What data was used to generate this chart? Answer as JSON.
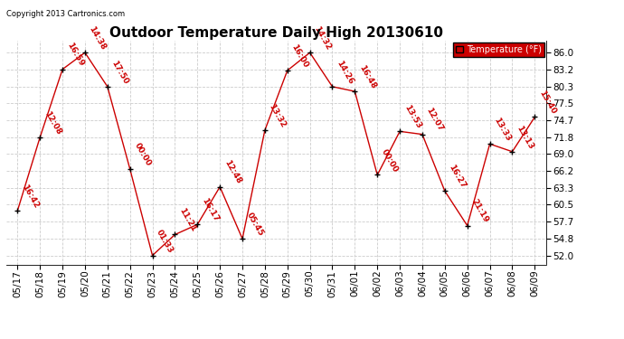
{
  "title": "Outdoor Temperature Daily High 20130610",
  "copyright_text": "Copyright 2013 Cartronics.com",
  "legend_label": "Temperature (°F)",
  "x_labels": [
    "05/17",
    "05/18",
    "05/19",
    "05/20",
    "05/21",
    "05/22",
    "05/23",
    "05/24",
    "05/25",
    "05/26",
    "05/27",
    "05/28",
    "05/29",
    "05/30",
    "05/31",
    "06/01",
    "06/02",
    "06/03",
    "06/04",
    "06/05",
    "06/06",
    "06/07",
    "06/08",
    "06/09"
  ],
  "y_values": [
    59.5,
    71.8,
    83.2,
    86.0,
    80.3,
    66.5,
    52.0,
    55.5,
    57.2,
    63.5,
    54.8,
    73.0,
    83.0,
    86.0,
    80.3,
    79.5,
    65.5,
    72.8,
    72.3,
    62.8,
    57.0,
    70.7,
    69.4,
    75.2
  ],
  "time_labels": [
    "16:42",
    "12:08",
    "16:59",
    "14:38",
    "17:50",
    "00:00",
    "01:33",
    "11:21",
    "16:17",
    "12:48",
    "05:45",
    "13:32",
    "16:00",
    "14:32",
    "14:26",
    "16:48",
    "00:00",
    "13:53",
    "12:07",
    "16:27",
    "21:19",
    "13:33",
    "13:13",
    "15:40"
  ],
  "y_ticks": [
    52.0,
    54.8,
    57.7,
    60.5,
    63.3,
    66.2,
    69.0,
    71.8,
    74.7,
    77.5,
    80.3,
    83.2,
    86.0
  ],
  "line_color": "#cc0000",
  "marker_color": "#000000",
  "bg_color": "#ffffff",
  "grid_color": "#cccccc",
  "title_fontsize": 11,
  "tick_fontsize": 7.5,
  "label_fontsize": 6.5,
  "ylim": [
    50.5,
    88.0
  ],
  "legend_bg": "#cc0000",
  "legend_text_color": "#ffffff"
}
